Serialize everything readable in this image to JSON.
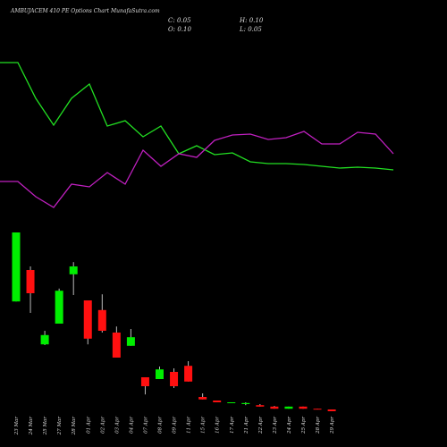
{
  "chart_data": [
    {
      "type": "line",
      "title": "AMBUJACEM 410 PE Options Chart MunafaSutra.com",
      "ylim": [
        0,
        200
      ],
      "series": [
        {
          "color": "#22e022",
          "values": [
            190,
            190,
            150,
            120,
            150,
            166,
            119,
            125,
            107,
            119,
            88,
            97,
            87,
            89,
            79,
            77,
            77,
            76,
            74,
            72,
            73,
            72,
            70
          ]
        },
        {
          "color": "#c020c0",
          "values": [
            57,
            57,
            40,
            28,
            54,
            51,
            67,
            54,
            92,
            74,
            88,
            84,
            103,
            109,
            110,
            104,
            106,
            113,
            99,
            99,
            112,
            110,
            88
          ]
        }
      ]
    },
    {
      "type": "candlestick",
      "annotations": [
        "C: 0.05",
        "H: 0.10",
        "O: 0.10",
        "L: 0.05"
      ],
      "categories": [
        "23 Mar",
        "24 Mar",
        "25 Mar",
        "27 Mar",
        "28 Mar",
        "01 Apr",
        "02 Apr",
        "03 Apr",
        "04 Apr",
        "07 Apr",
        "08 Apr",
        "09 Apr",
        "11 Apr",
        "15 Apr",
        "16 Apr",
        "17 Apr",
        "21 Apr",
        "22 Apr",
        "23 Apr",
        "24 Apr",
        "25 Apr",
        "28 Apr",
        "29 Apr"
      ],
      "open": [
        3.12,
        4.0,
        1.92,
        2.5,
        3.88,
        3.15,
        2.88,
        2.25,
        1.88,
        1.0,
        0.95,
        1.15,
        1.32,
        0.45,
        0.35,
        0.28,
        0.25,
        0.22,
        0.18,
        0.12,
        0.18,
        0.12,
        0.1
      ],
      "high": [
        5.05,
        4.1,
        2.3,
        3.48,
        4.22,
        3.15,
        3.32,
        2.42,
        2.35,
        1.0,
        1.3,
        1.25,
        1.45,
        0.55,
        0.35,
        0.3,
        0.3,
        0.25,
        0.2,
        0.18,
        0.18,
        0.12,
        0.1
      ],
      "low": [
        3.12,
        2.8,
        1.9,
        2.5,
        3.3,
        1.92,
        2.25,
        1.55,
        1.88,
        0.52,
        0.95,
        0.7,
        0.88,
        0.38,
        0.3,
        0.28,
        0.22,
        0.18,
        0.12,
        0.12,
        0.12,
        0.1,
        0.05
      ],
      "close": [
        5.05,
        3.35,
        2.18,
        3.42,
        4.1,
        2.08,
        2.3,
        1.55,
        2.12,
        0.75,
        1.22,
        0.75,
        0.88,
        0.38,
        0.3,
        0.3,
        0.28,
        0.18,
        0.12,
        0.18,
        0.12,
        0.1,
        0.05
      ],
      "up_color": "#00ee00",
      "down_color": "#ff1010",
      "ylim": [
        0,
        5.2
      ]
    }
  ]
}
